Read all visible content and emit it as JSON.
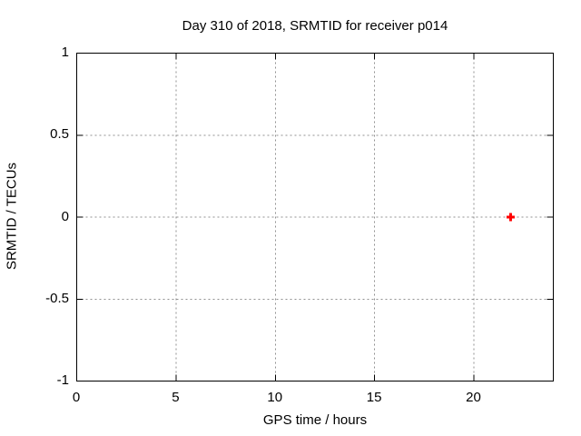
{
  "window": {
    "background": "#ffffff"
  },
  "chart_data": {
    "type": "scatter",
    "title": "Day 310 of 2018, SRMTID for receiver p014",
    "xlabel": "GPS time / hours",
    "ylabel": "SRMTID / TECUs",
    "xlim": [
      0,
      24
    ],
    "ylim": [
      -1,
      1
    ],
    "xticks": [
      0,
      5,
      10,
      15,
      20
    ],
    "xtick_labels": [
      "0",
      "5",
      "10",
      "15",
      "20"
    ],
    "yticks": [
      -1,
      -0.5,
      0,
      0.5,
      1
    ],
    "ytick_labels": [
      "-1",
      "-0.5",
      "0",
      "0.5",
      "1"
    ],
    "grid": true,
    "legend": "none",
    "series": [
      {
        "name": "SRMTID",
        "marker": "plus",
        "marker_size": 9,
        "color": "#ff0000",
        "points": [
          {
            "x": 21.85,
            "y": 0.0
          }
        ]
      }
    ],
    "colors": {
      "background": "#ffffff",
      "plot_border": "#000000",
      "grid": "#909090",
      "text": "#000000",
      "marker": "#ff0000"
    }
  }
}
